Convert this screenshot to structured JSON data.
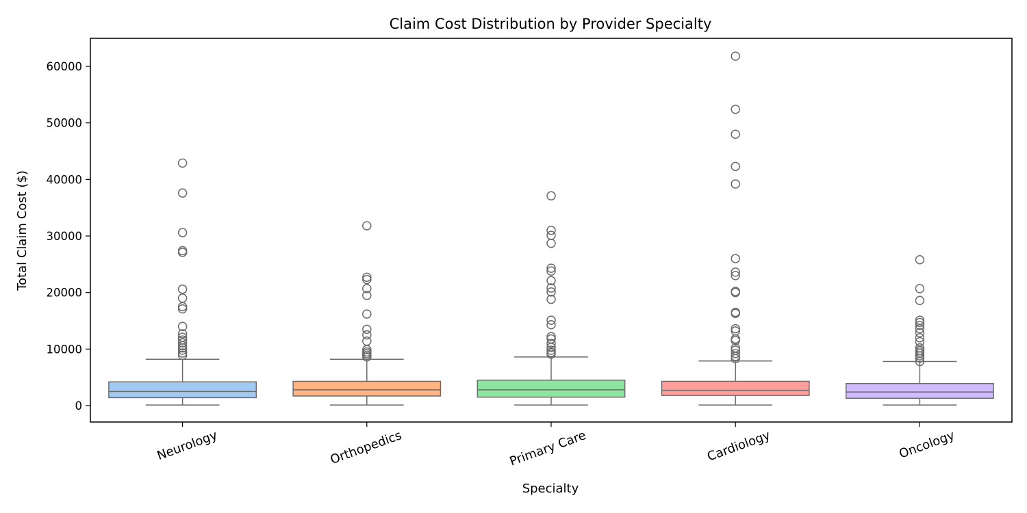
{
  "chart_data": {
    "type": "box",
    "title": "Claim Cost Distribution by Provider Specialty",
    "xlabel": "Specialty",
    "ylabel": "Total Claim Cost ($)",
    "ylim": [
      -3000,
      65000
    ],
    "yticks": [
      0,
      10000,
      20000,
      30000,
      40000,
      50000,
      60000
    ],
    "yticks_labels": [
      "0",
      "10000",
      "20000",
      "30000",
      "40000",
      "50000",
      "60000"
    ],
    "grid": false,
    "legend": "none",
    "categories": [
      "Neurology",
      "Orthopedics",
      "Primary Care",
      "Cardiology",
      "Oncology"
    ],
    "colors": [
      "#a1c9f4",
      "#ffb482",
      "#8de5a1",
      "#ff9f9b",
      "#d0bbff"
    ],
    "edge_color": "#6b6b6b",
    "boxes": [
      {
        "category": "Neurology",
        "whisker_low": 100,
        "q1": 1400,
        "median": 2500,
        "q3": 4200,
        "whisker_high": 8200,
        "outliers": [
          8900,
          9300,
          9800,
          10200,
          10600,
          11100,
          11600,
          12100,
          12700,
          14000,
          17100,
          17500,
          19000,
          20600,
          27100,
          27400,
          30600,
          37600,
          42900
        ]
      },
      {
        "category": "Orthopedics",
        "whisker_low": 100,
        "q1": 1700,
        "median": 2800,
        "q3": 4300,
        "whisker_high": 8200,
        "outliers": [
          8600,
          8900,
          9200,
          9500,
          9900,
          11400,
          12500,
          13500,
          16200,
          19500,
          20700,
          22300,
          22700,
          31800
        ]
      },
      {
        "category": "Primary Care",
        "whisker_low": 100,
        "q1": 1500,
        "median": 2800,
        "q3": 4500,
        "whisker_high": 8600,
        "outliers": [
          9100,
          9400,
          9800,
          10300,
          11000,
          11800,
          12200,
          14300,
          15100,
          18800,
          20100,
          20800,
          22100,
          23800,
          24300,
          28700,
          30100,
          31000,
          37100
        ]
      },
      {
        "category": "Cardiology",
        "whisker_low": 100,
        "q1": 1800,
        "median": 2700,
        "q3": 4300,
        "whisker_high": 7900,
        "outliers": [
          8300,
          8700,
          9200,
          9800,
          10200,
          11500,
          11800,
          13200,
          13600,
          16300,
          16500,
          20000,
          20200,
          23000,
          23600,
          26000,
          39200,
          42300,
          48000,
          52400,
          61800
        ]
      },
      {
        "category": "Oncology",
        "whisker_low": 100,
        "q1": 1300,
        "median": 2400,
        "q3": 3900,
        "whisker_high": 7800,
        "outliers": [
          7800,
          8400,
          8800,
          9200,
          9500,
          9800,
          10200,
          11300,
          12000,
          12900,
          13600,
          14200,
          14700,
          15100,
          18600,
          20700,
          25800
        ]
      }
    ]
  }
}
